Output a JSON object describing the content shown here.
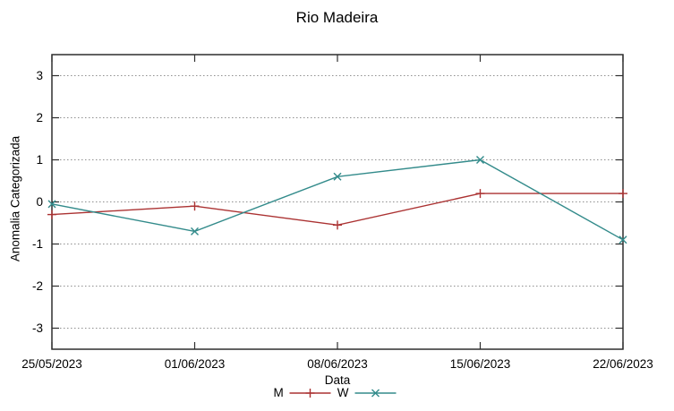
{
  "chart_data": {
    "type": "line",
    "title": "Rio Madeira",
    "xlabel": "Data",
    "ylabel": "Anomalia Categorizada",
    "categories": [
      "25/05/2023",
      "01/06/2023",
      "08/06/2023",
      "15/06/2023",
      "22/06/2023"
    ],
    "series": [
      {
        "name": "M",
        "marker": "plus",
        "color": "#ab3232",
        "values": [
          -0.3,
          -0.1,
          -0.55,
          0.2,
          0.2
        ]
      },
      {
        "name": "W",
        "marker": "cross",
        "color": "#338b8b",
        "values": [
          -0.05,
          -0.7,
          0.6,
          1.0,
          -0.9
        ]
      }
    ],
    "ylim": [
      -3.5,
      3.5
    ],
    "yticks": [
      3,
      2,
      1,
      0,
      -1,
      -2,
      -3
    ],
    "grid": true,
    "grid_style": "dotted",
    "legend_position": "bottom-center",
    "colors": {
      "axis": "#2e2e2e",
      "grid": "#8f8f8f",
      "text": "#000000",
      "background": "#ffffff"
    }
  }
}
